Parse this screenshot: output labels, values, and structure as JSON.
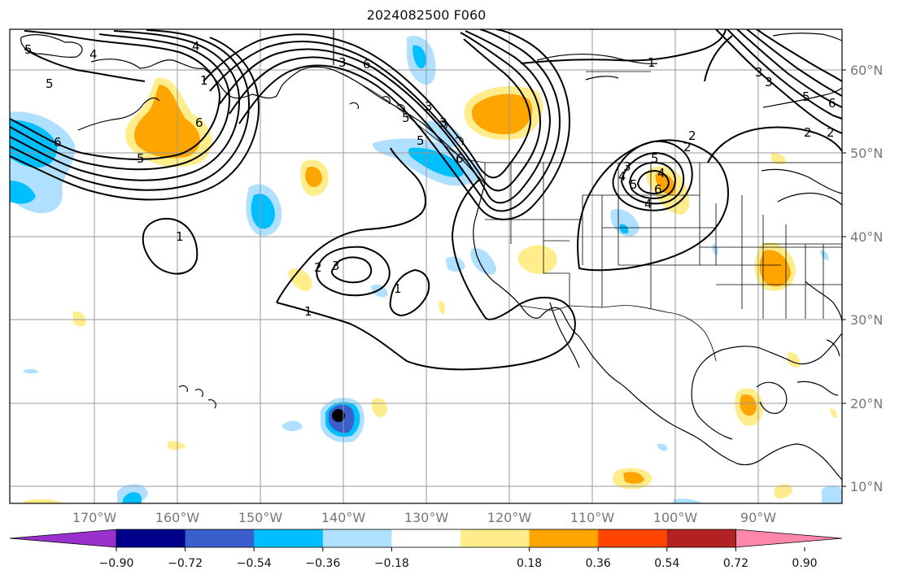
{
  "title": "2024082500 F060",
  "map": {
    "lat_labels": [
      "60°N",
      "50°N",
      "40°N",
      "30°N",
      "20°N",
      "10°N"
    ],
    "lon_labels": [
      "170°W",
      "160°W",
      "150°W",
      "140°W",
      "130°W",
      "120°W",
      "110°W",
      "100°W",
      "90°W"
    ],
    "grid": "on"
  },
  "colorbar": {
    "ticks": [
      "−0.90",
      "−0.72",
      "−0.54",
      "−0.36",
      "−0.18",
      "0.18",
      "0.36",
      "0.54",
      "0.72",
      "0.90"
    ],
    "colors": [
      "#9932cc",
      "#00008b",
      "#3a5fcd",
      "#00bfff",
      "#b0e0ff",
      "#ffffff",
      "#ffec8b",
      "#ffa500",
      "#ff4500",
      "#b22222",
      "#ff88aa"
    ]
  },
  "contour_labels": [
    "5",
    "4",
    "5",
    "6",
    "6",
    "5",
    "3",
    "6",
    "3",
    "5",
    "1",
    "1",
    "3",
    "2",
    "4",
    "5",
    "6",
    "5",
    "4",
    "3",
    "2",
    "1",
    "2",
    "3",
    "1",
    "1",
    "2",
    "3",
    "4",
    "5",
    "6",
    "4",
    "3",
    "5",
    "6",
    "2"
  ]
}
